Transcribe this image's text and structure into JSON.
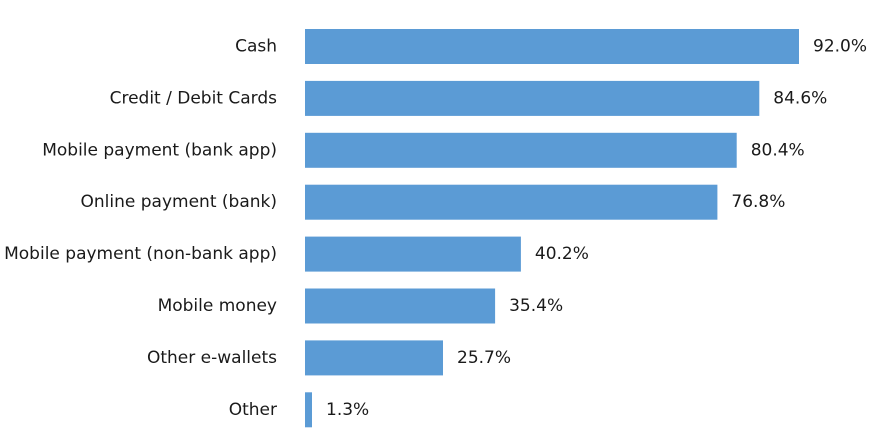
{
  "chart_data": {
    "type": "bar",
    "orientation": "horizontal",
    "categories": [
      "Cash",
      "Credit / Debit Cards",
      "Mobile payment (bank app)",
      "Online payment (bank)",
      "Mobile payment (non-bank app)",
      "Mobile money",
      "Other e-wallets",
      "Other"
    ],
    "values": [
      92.0,
      84.6,
      80.4,
      76.8,
      40.2,
      35.4,
      25.7,
      1.3
    ],
    "value_labels": [
      "92.0%",
      "84.6%",
      "80.4%",
      "76.8%",
      "40.2%",
      "35.4%",
      "25.7%",
      "1.3%"
    ],
    "title": "",
    "xlabel": "",
    "ylabel": "",
    "xlim": [
      0,
      100
    ],
    "grid": false,
    "legend": "none",
    "bar_color": "#5b9bd5"
  }
}
